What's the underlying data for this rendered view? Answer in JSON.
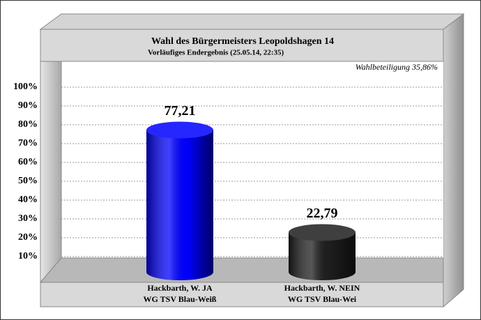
{
  "chart_data": {
    "type": "bar",
    "title": "Wahl des Bürgermeisters Leopoldshagen 14",
    "subtitle": "Vorläufiges Endergebnis (25.05.14, 22:35)",
    "annotation": "Wahlbeteiligung 35,86%",
    "categories": [
      [
        "Hackbarth, W. JA",
        "WG TSV Blau-Weiß"
      ],
      [
        "Hackbarth, W. NEIN",
        "WG TSV Blau-Wei"
      ]
    ],
    "values": [
      77.21,
      22.79
    ],
    "value_labels": [
      "77,21",
      "22,79"
    ],
    "colors": [
      "#0000ff",
      "#1e1e1e"
    ],
    "ylim": [
      0,
      100
    ],
    "yticks": [
      {
        "value": 10,
        "label": "10%"
      },
      {
        "value": 20,
        "label": "20%"
      },
      {
        "value": 30,
        "label": "30%"
      },
      {
        "value": 40,
        "label": "40%"
      },
      {
        "value": 50,
        "label": "50%"
      },
      {
        "value": 60,
        "label": "60%"
      },
      {
        "value": 70,
        "label": "70%"
      },
      {
        "value": 80,
        "label": "80%"
      },
      {
        "value": 90,
        "label": "90%"
      },
      {
        "value": 100,
        "label": "100%"
      }
    ],
    "grid": true
  }
}
